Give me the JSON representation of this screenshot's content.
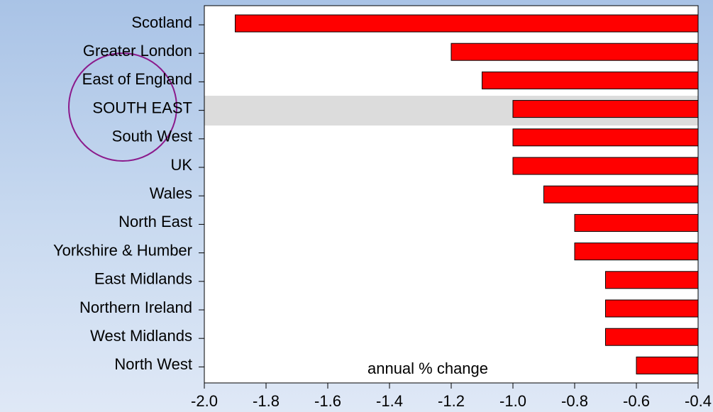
{
  "chart_data": {
    "type": "bar",
    "orientation": "horizontal",
    "categories": [
      "Scotland",
      "Greater London",
      "East of England",
      "SOUTH EAST",
      "South West",
      "UK",
      "Wales",
      "North East",
      "Yorkshire & Humber",
      "East Midlands",
      "Northern Ireland",
      "West Midlands",
      "North West"
    ],
    "values": [
      -1.9,
      -1.2,
      -1.1,
      -1.0,
      -1.0,
      -1.0,
      -0.9,
      -0.8,
      -0.8,
      -0.7,
      -0.7,
      -0.7,
      -0.6
    ],
    "color": "#ff0000",
    "xlim": [
      -2.0,
      -0.4
    ],
    "xticks": [
      {
        "value": -2.0,
        "label": "-2.0"
      },
      -1.8,
      -1.6,
      -1.4,
      -1.2,
      {
        "value": -1.0,
        "label": "-1.0"
      },
      -0.8,
      -0.6,
      -0.4
    ],
    "annotation": "annual % change",
    "grid": false
  }
}
